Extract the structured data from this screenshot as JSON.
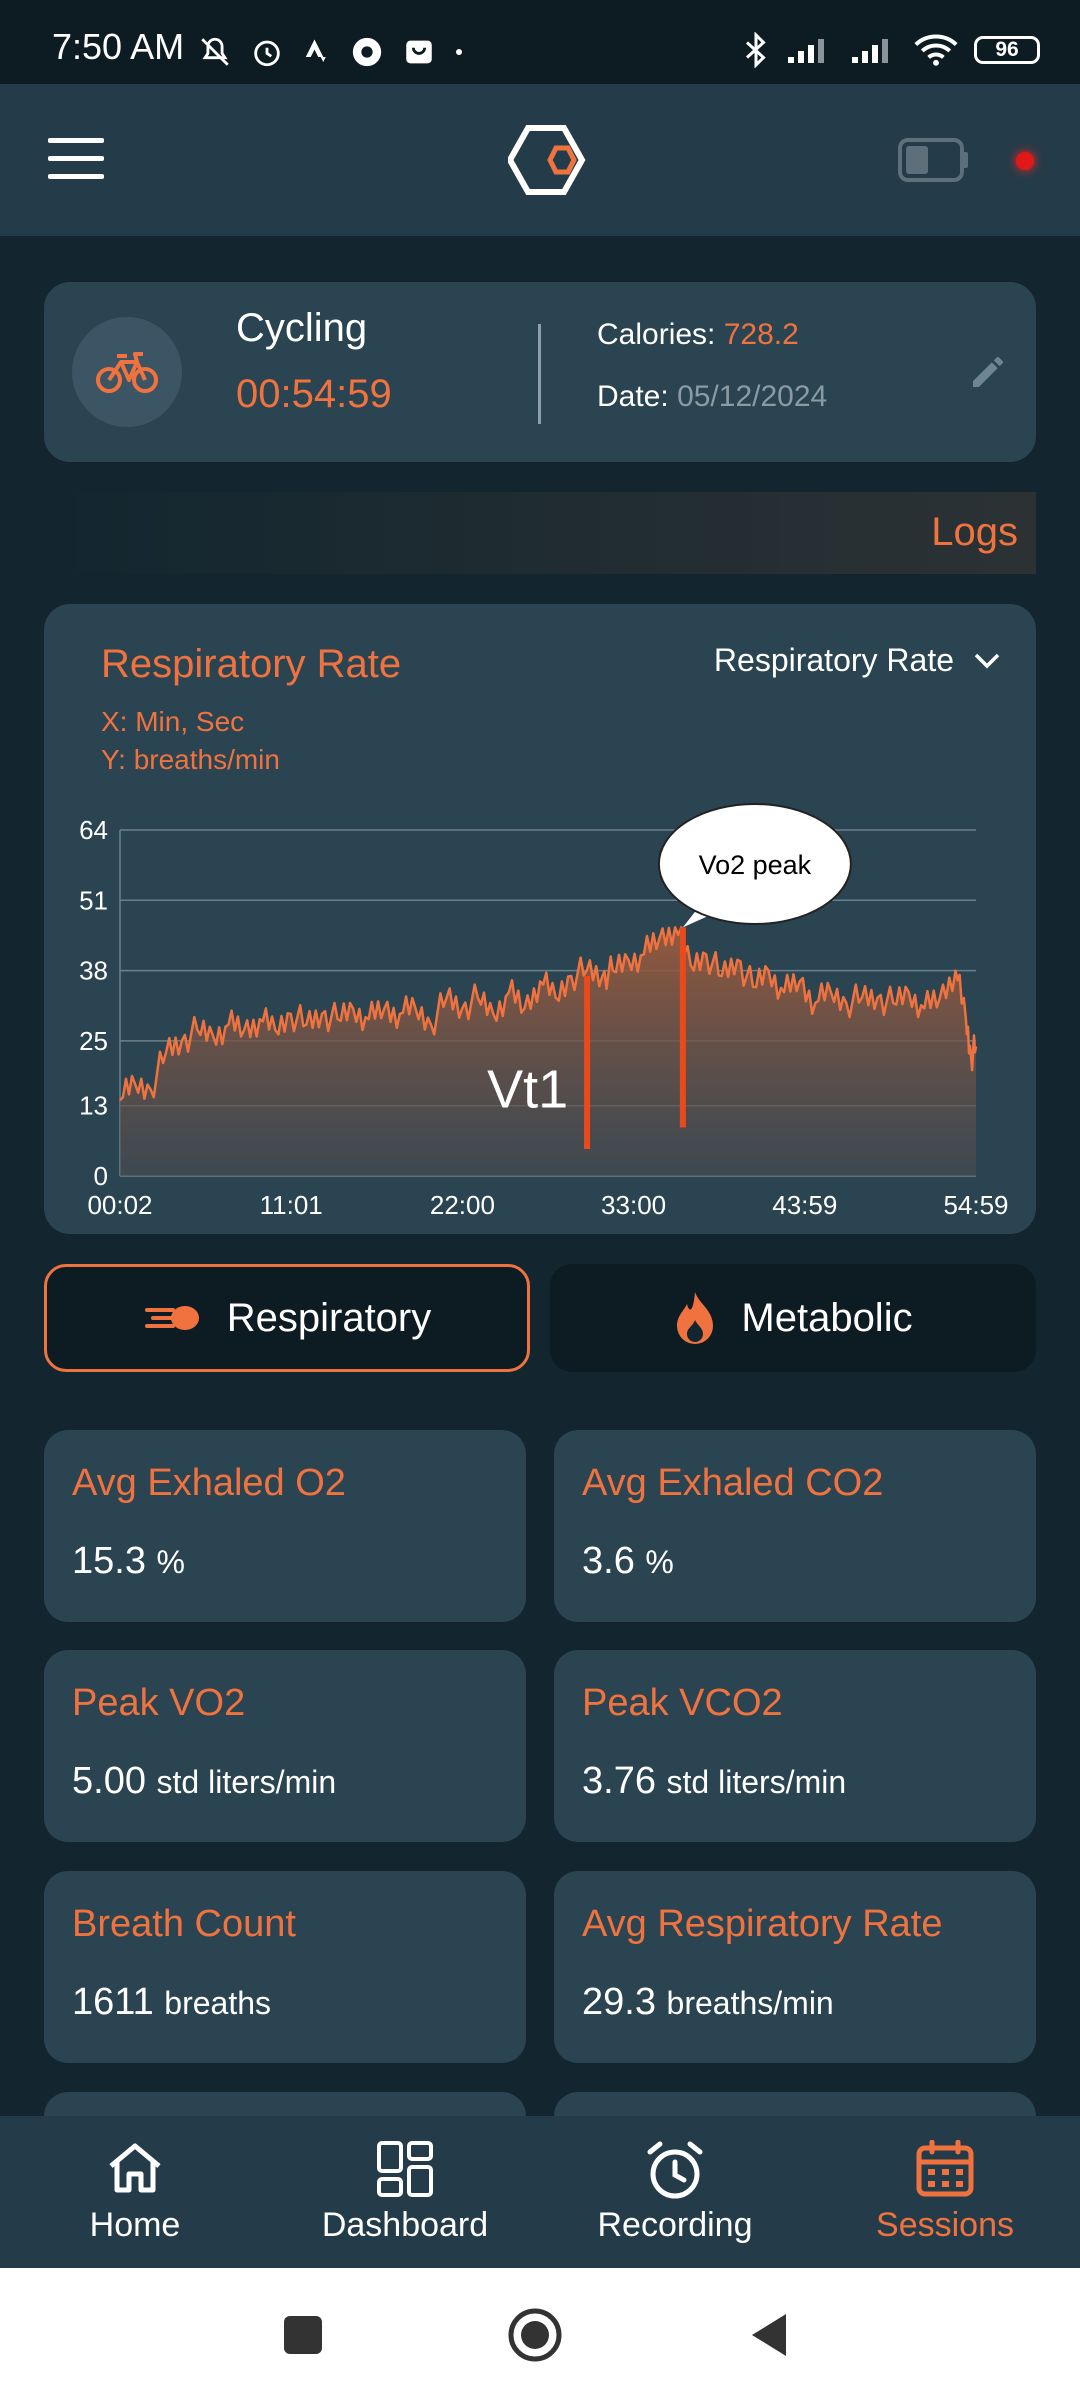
{
  "status_bar": {
    "time": "7:50 AM",
    "battery": "96"
  },
  "session": {
    "activity": "Cycling",
    "duration": "00:54:59",
    "calories_label": "Calories:",
    "calories_value": "728.2",
    "date_label": "Date:",
    "date_value": "05/12/2024"
  },
  "logs_label": "Logs",
  "chart_card": {
    "title": "Respiratory Rate",
    "x_unit": "X: Min, Sec",
    "y_unit": "Y: breaths/min",
    "selected_metric": "Respiratory Rate"
  },
  "chart_data": {
    "type": "area",
    "x_ticks": [
      "00:02",
      "11:01",
      "22:00",
      "33:00",
      "43:59",
      "54:59"
    ],
    "y_ticks": [
      0,
      13,
      25,
      38,
      51,
      64
    ],
    "ylim": [
      0,
      64
    ],
    "xlim_seconds": [
      2,
      3299
    ],
    "ylabel": "breaths/min",
    "xlabel": "Min, Sec",
    "series": [
      {
        "x_seconds": [
          2,
          60,
          120,
          180,
          240,
          300,
          360,
          420,
          480,
          540,
          600,
          660,
          720,
          780,
          840,
          900,
          960,
          1020,
          1080,
          1140,
          1200,
          1260,
          1320,
          1380,
          1440,
          1500,
          1560,
          1620,
          1680,
          1740,
          1800,
          1860,
          1900,
          1960,
          2020,
          2080,
          2140,
          2200,
          2260,
          2320,
          2380,
          2440,
          2500,
          2560,
          2620,
          2680,
          2740,
          2800,
          2860,
          2920,
          2980,
          3040,
          3100,
          3160,
          3220,
          3260,
          3280,
          3299
        ],
        "y": [
          14,
          17,
          16,
          23,
          25,
          27,
          26,
          28,
          27,
          29,
          27,
          30,
          28,
          30,
          29,
          31,
          29,
          31,
          30,
          31,
          28,
          33,
          31,
          33,
          30,
          34,
          31,
          36,
          33,
          37,
          38,
          37,
          38,
          40,
          41,
          44,
          46,
          39,
          41,
          37,
          40,
          35,
          38,
          34,
          36,
          32,
          34,
          32,
          33,
          33,
          32,
          34,
          31,
          33,
          38,
          29,
          22,
          24
        ]
      }
    ],
    "markers": [
      {
        "label": "Vt1",
        "x_seconds": 1801,
        "y_from": 5,
        "y_to": 37
      },
      {
        "label": "Vo2 peak",
        "x_seconds": 2170,
        "y_from": 9,
        "y_to": 46
      }
    ]
  },
  "tabs": [
    {
      "label": "Respiratory",
      "active": true
    },
    {
      "label": "Metabolic",
      "active": false
    }
  ],
  "stats": [
    {
      "label": "Avg Exhaled O2",
      "value": "15.3",
      "unit": "%"
    },
    {
      "label": "Avg Exhaled CO2",
      "value": "3.6",
      "unit": "%"
    },
    {
      "label": "Peak VO2",
      "value": "5.00",
      "unit": "std liters/min"
    },
    {
      "label": "Peak VCO2",
      "value": "3.76",
      "unit": "std liters/min"
    },
    {
      "label": "Breath Count",
      "value": "1611",
      "unit": "breaths"
    },
    {
      "label": "Avg Respiratory Rate",
      "value": "29.3",
      "unit": "breaths/min"
    }
  ],
  "bottom_nav": [
    {
      "label": "Home",
      "icon": "home-icon"
    },
    {
      "label": "Dashboard",
      "icon": "dashboard-icon"
    },
    {
      "label": "Recording",
      "icon": "alarm-clock-icon"
    },
    {
      "label": "Sessions",
      "icon": "calendar-icon",
      "active": true
    }
  ],
  "colors": {
    "accent": "#f0733f",
    "background": "#13262f",
    "card": "#2a4452",
    "marker": "#e84a1c"
  }
}
